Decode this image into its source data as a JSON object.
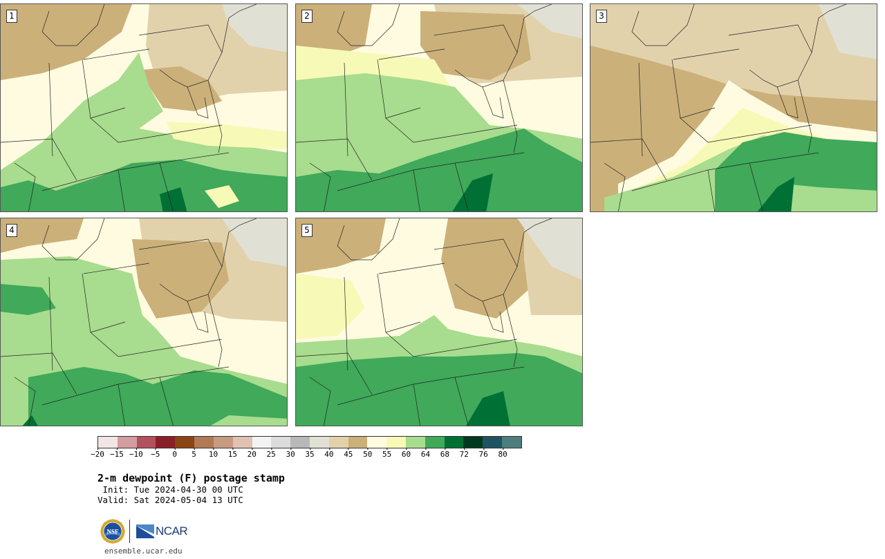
{
  "panels": [
    {
      "number": "1",
      "variant": 0
    },
    {
      "number": "2",
      "variant": 1
    },
    {
      "number": "3",
      "variant": 2
    },
    {
      "number": "4",
      "variant": 3
    },
    {
      "number": "5",
      "variant": 4
    }
  ],
  "colorbar": {
    "colors": [
      "#f2e5e5",
      "#d29ca0",
      "#b2525c",
      "#8b1f28",
      "#8b4513",
      "#b07a55",
      "#c79b82",
      "#e0c2b2",
      "#f3f3f3",
      "#dcdcdc",
      "#b8b8b8",
      "#e1e0d4",
      "#e2d2ac",
      "#cbb07a",
      "#fffbe0",
      "#f7f9b7",
      "#a8dc8e",
      "#40a95a",
      "#007034",
      "#00391f",
      "#1e5461",
      "#4d7d7d"
    ],
    "tick_labels": [
      "−20",
      "−15",
      "−10",
      "−5",
      "0",
      "5",
      "10",
      "15",
      "20",
      "25",
      "30",
      "35",
      "40",
      "45",
      "50",
      "55",
      "60",
      "64",
      "68",
      "72",
      "76",
      "80"
    ]
  },
  "map_colors": {
    "brown": "#cbb07a",
    "tan": "#e2d2ac",
    "gray": "#e1e0d4",
    "darkgray": "#b8b8b8",
    "cream": "#fffbe0",
    "paleyellow": "#f7f9b7",
    "lightgreen": "#a8dc8e",
    "green": "#40a95a",
    "darkgreen": "#007034"
  },
  "caption": {
    "title": "2-m dewpoint (F) postage stamp",
    "init": " Init: Tue 2024-04-30 00 UTC",
    "valid": "Valid: Sat 2024-05-04 13 UTC"
  },
  "logos": {
    "nsf_icon": "nsf-seal-icon",
    "nsf_text": "NSF",
    "ncar_icon": "ncar-logo-icon",
    "ncar_text": "NCAR"
  },
  "footer": {
    "site": "ensemble.ucar.edu"
  }
}
